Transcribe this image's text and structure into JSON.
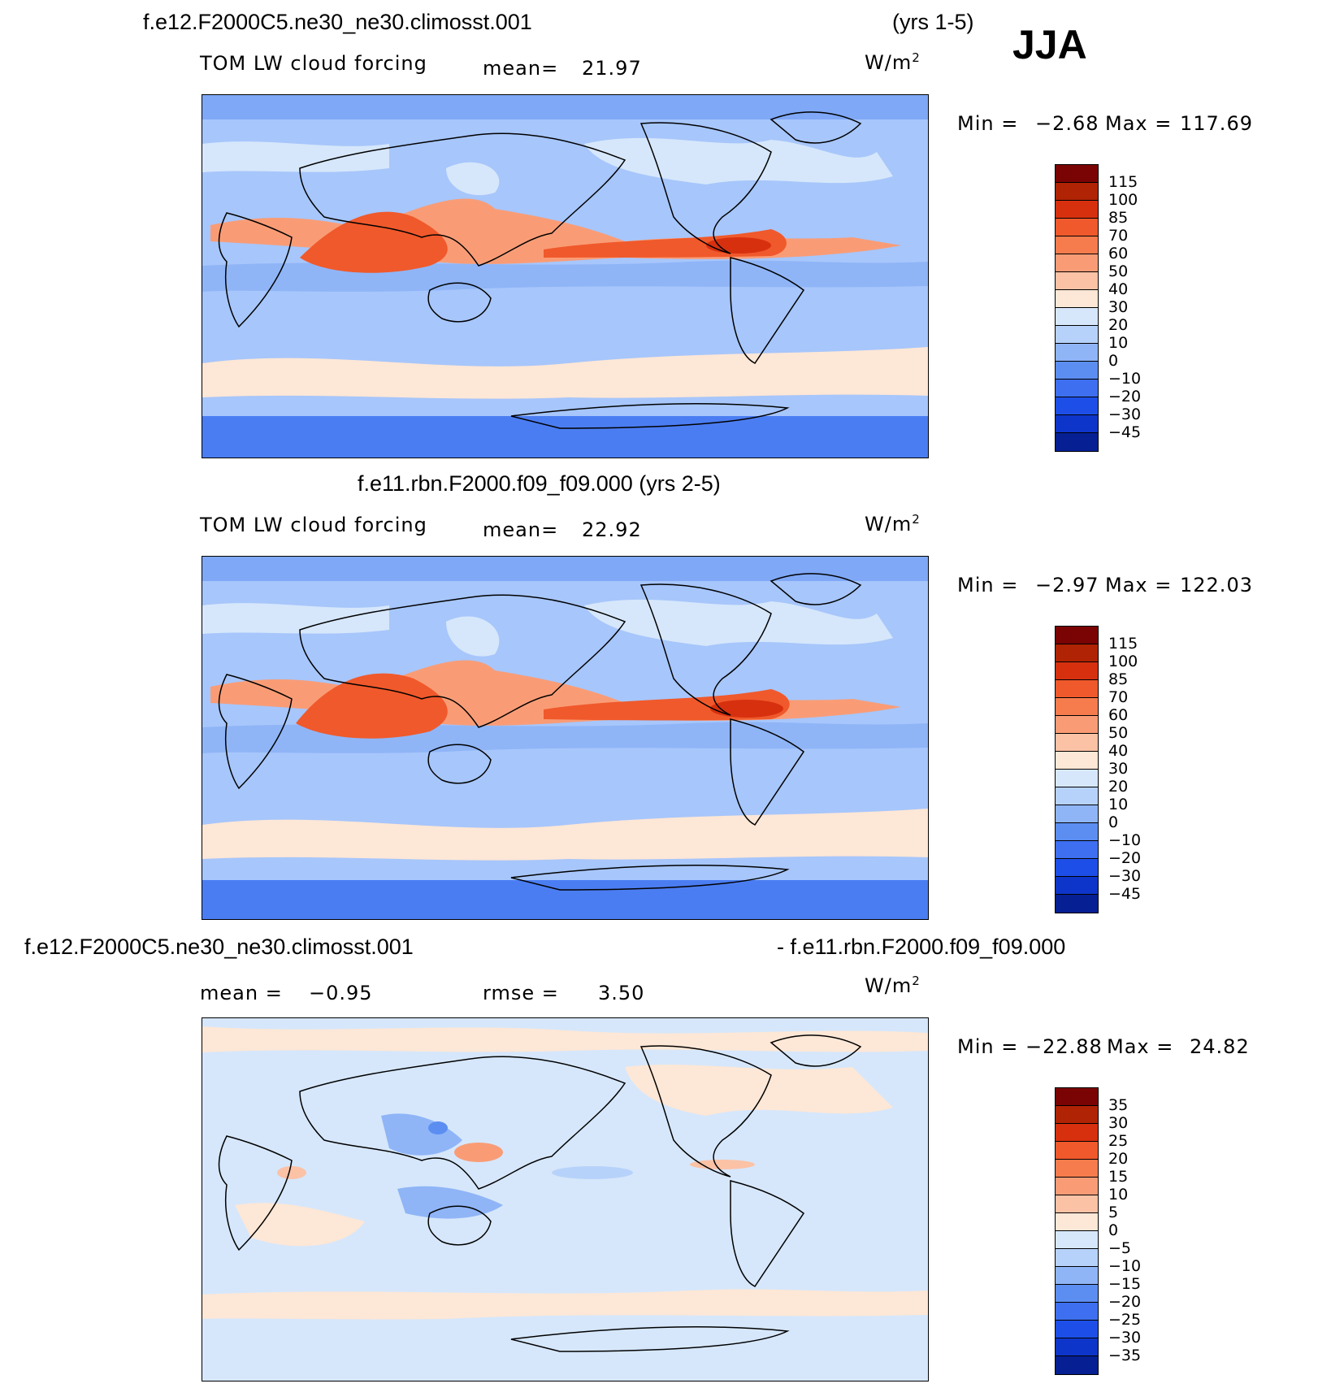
{
  "season": "JJA",
  "panel1": {
    "case": "f.e12.F2000C5.ne30_ne30.climosst.001",
    "years": "(yrs 1-5)",
    "variable": "TOM LW cloud forcing",
    "mean_label": "mean=",
    "mean_value": "21.97",
    "units": "W/m",
    "units_sup": "2",
    "min_label": "Min =",
    "min_value": "−2.68",
    "max_label": "Max =",
    "max_value": "117.69",
    "colorbar_ticks": [
      "115",
      "100",
      "85",
      "70",
      "60",
      "50",
      "40",
      "30",
      "20",
      "10",
      "0",
      "−10",
      "−20",
      "−30",
      "−45"
    ]
  },
  "panel2": {
    "title": "f.e11.rbn.F2000.f09_f09.000 (yrs 2-5)",
    "variable": "TOM LW cloud forcing",
    "mean_label": "mean=",
    "mean_value": "22.92",
    "units": "W/m",
    "units_sup": "2",
    "min_label": "Min =",
    "min_value": "−2.97",
    "max_label": "Max =",
    "max_value": "122.03",
    "colorbar_ticks": [
      "115",
      "100",
      "85",
      "70",
      "60",
      "50",
      "40",
      "30",
      "20",
      "10",
      "0",
      "−10",
      "−20",
      "−30",
      "−45"
    ]
  },
  "panel3": {
    "case_a": "f.e12.F2000C5.ne30_ne30.climosst.001",
    "case_b": "- f.e11.rbn.F2000.f09_f09.000",
    "mean_label": "mean =",
    "mean_value": "−0.95",
    "rmse_label": "rmse =",
    "rmse_value": "3.50",
    "units": "W/m",
    "units_sup": "2",
    "min_label": "Min =",
    "min_value": "−22.88",
    "max_label": "Max =",
    "max_value": "24.82",
    "colorbar_ticks": [
      "35",
      "30",
      "25",
      "20",
      "15",
      "10",
      "5",
      "0",
      "−5",
      "−10",
      "−15",
      "−20",
      "−25",
      "−30",
      "−35"
    ]
  },
  "colors": {
    "scale_main": [
      "#7a0403",
      "#b02304",
      "#d7300f",
      "#f0592b",
      "#f77c4d",
      "#f99c76",
      "#fbc2a6",
      "#fde7d6",
      "#d6e7fb",
      "#b7d2fa",
      "#8fb5f7",
      "#5c8ef2",
      "#3d6ff0",
      "#1d4fe8",
      "#0e35c9",
      "#061f93"
    ],
    "scale_diff": [
      "#7a0403",
      "#b02304",
      "#d7300f",
      "#f0592b",
      "#f77c4d",
      "#f99c76",
      "#fbc2a6",
      "#fde7d6",
      "#d6e7fb",
      "#b7d2fa",
      "#8fb5f7",
      "#5c8ef2",
      "#3d6ff0",
      "#1d4fe8",
      "#0e35c9",
      "#0a24a8",
      "#061f93"
    ]
  }
}
